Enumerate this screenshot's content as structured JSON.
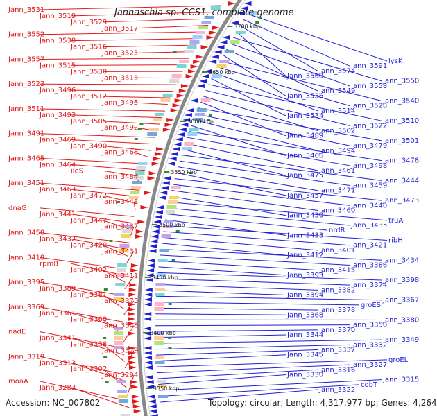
{
  "title": "Jannaschia sp. CCS1, complete genome",
  "accession": "Accession: NC_007802",
  "topology": "Topology: circular; Length: 4,317,977 bp; Genes: 4,264",
  "colors": {
    "left": "#e01a1a",
    "right": "#1f1fd6",
    "ring": "#888888",
    "kbp_tick": "#2e8b2e"
  },
  "kbp_marks": [
    "3700 kbp",
    "3650 kbp",
    "3600 kbp",
    "3550 kbp",
    "3500 kbp",
    "3450 kbp",
    "3400 kbp",
    "3350 kbp"
  ],
  "left_labels": [
    "Jann_3531",
    "Jann_3519",
    "Jann_3529",
    "Jann_3517",
    "Jann_3552",
    "Jann_3538",
    "Jann_3516",
    "Jann_3525",
    "Jann_3557",
    "Jann_3515",
    "Jann_3530",
    "Jann_3513",
    "Jann_3523",
    "Jann_3496",
    "Jann_3512",
    "Jann_3495",
    "Jann_3511",
    "Jann_3493",
    "Jann_3505",
    "Jann_3492",
    "Jann_3491",
    "Jann_3469",
    "Jann_3490",
    "Jann_3468",
    "Jann_3465",
    "Jann_3464",
    "ileS",
    "Jann_3484",
    "Jann_3451",
    "Jann_3463",
    "Jann_3472",
    "Jann_3448",
    "dnaG",
    "Jann_3441",
    "Jann_3447",
    "Jann_3437",
    "Jann_3458",
    "Jann_3432",
    "Jann_3420",
    "Jann_3431",
    "Jann_3418",
    "rpmB",
    "Jann_3402",
    "Jann_3411",
    "Jann_3395",
    "Jann_3389",
    "Jann_3381",
    "Jann_3375",
    "Jann_3369",
    "Jann_3361",
    "Jann_3360",
    "Jann_3348",
    "nadE",
    "Jann_3341",
    "Jann_3338",
    "Jann_3329",
    "Jann_3319",
    "Jann_3313",
    "Jann_3302",
    "Jann_3294",
    "moaA",
    "Jann_3283"
  ],
  "right_labels": [
    "lysK",
    "Jann_3591",
    "Jann_3574",
    "Jann_3568",
    "Jann_3550",
    "Jann_3558",
    "Jann_3549",
    "Jann_3536",
    "Jann_3540",
    "Jann_3528",
    "Jann_3514",
    "Jann_3534",
    "Jann_3510",
    "Jann_3522",
    "Jann_3502",
    "Jann_3489",
    "Jann_3501",
    "Jann_3479",
    "Jann_3494",
    "Jann_3466",
    "Jann_3478",
    "Jann_3498",
    "Jann_3461",
    "Jann_3475",
    "Jann_3444",
    "Jann_3459",
    "Jann_3471",
    "Jann_3457",
    "Jann_3473",
    "Jann_3440",
    "Jann_3460",
    "Jann_3430",
    "truA",
    "Jann_3435",
    "nrdR",
    "Jann_3433",
    "ribH",
    "Jann_3421",
    "Jann_3401",
    "Jann_3412",
    "Jann_3434",
    "Jann_3386",
    "Jann_3415",
    "Jann_3393",
    "Jann_3398",
    "Jann_3374",
    "Jann_3382",
    "Jann_3394",
    "Jann_3367",
    "groES",
    "Jann_3378",
    "Jann_3368",
    "Jann_3380",
    "Jann_3350",
    "Jann_3370",
    "Jann_3344",
    "Jann_3349",
    "Jann_3332",
    "Jann_3337",
    "Jann_3345",
    "groEL",
    "Jann_3327",
    "Jann_3316",
    "Jann_3330",
    "Jann_3315",
    "cobT",
    "Jann_3322"
  ]
}
